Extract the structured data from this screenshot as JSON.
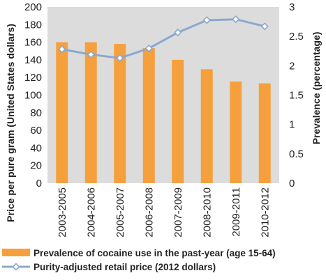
{
  "chart_data": {
    "type": "bar",
    "categories": [
      "2003-2005",
      "2004-2006",
      "2005-2007",
      "2006-2008",
      "2007-2009",
      "2008-2010",
      "2009-2011",
      "2010-2012"
    ],
    "series": [
      {
        "name": "Prevalence of cocaine use in the past-year (age 15-64)",
        "type": "bar",
        "axis": "right",
        "values": [
          2.4,
          2.4,
          2.37,
          2.3,
          2.1,
          1.94,
          1.73,
          1.7
        ],
        "color": "#f5a03c"
      },
      {
        "name": "Purity-adjusted retail price (2012 dollars)",
        "type": "line",
        "axis": "left",
        "values": [
          152,
          146,
          142,
          153,
          171,
          185,
          186,
          178
        ],
        "color": "#8aa8d0"
      }
    ],
    "ylabel_left": "Price per pure gram (United States dollars)",
    "ylabel_right": "Prevalence (percentage)",
    "ylim_left": [
      0,
      200
    ],
    "ylim_right": [
      0,
      3
    ],
    "left_ticks": [
      "200",
      "180",
      "160",
      "140",
      "120",
      "100",
      "80",
      "60",
      "40",
      "20",
      "0"
    ],
    "right_ticks": [
      "3",
      "2.5",
      "2",
      "1.5",
      "1",
      "0.5",
      "0"
    ],
    "legend_position": "bottom",
    "grid": false,
    "plot_background": "#dcdcdc"
  }
}
